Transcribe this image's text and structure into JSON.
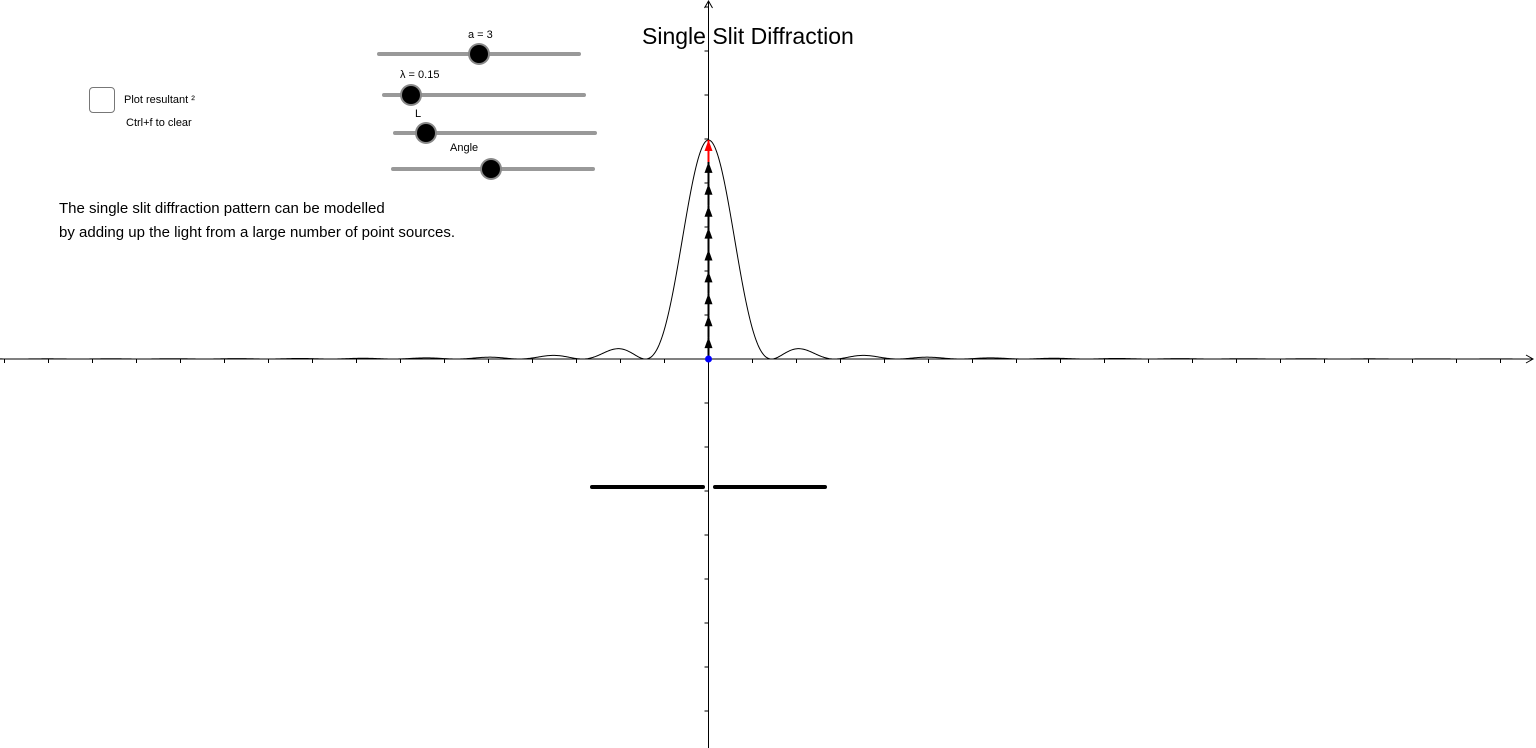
{
  "title": "Single Slit Diffraction",
  "sliders": [
    {
      "label": "a = 3",
      "value": 3,
      "fraction": 0.5
    },
    {
      "label": "λ = 0.15",
      "value": 0.15,
      "fraction": 0.14
    },
    {
      "label": "L",
      "fraction": 0.16
    },
    {
      "label": "Angle",
      "fraction": 0.49
    }
  ],
  "checkbox": {
    "label": "Plot resultant ²",
    "checked": false,
    "hint": "Ctrl+f to clear"
  },
  "description": {
    "line1": "The single slit diffraction pattern can be modelled",
    "line2": "by adding up the light from a large number of point sources."
  },
  "colors": {
    "resultant_phasor": "#ff0000",
    "phasor": "#000000",
    "origin_point": "#0000ff",
    "slider_track": "#999999"
  },
  "phasor_count": 10
}
